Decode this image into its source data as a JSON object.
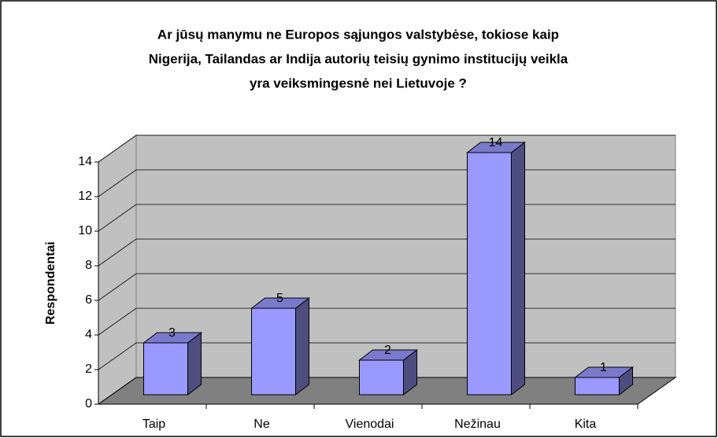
{
  "chart_data": {
    "type": "bar3d",
    "title": [
      "Ar jūsų manymu ne Europos sąjungos valstybėse, tokiose kaip",
      "Nigerija, Tailandas ar Indija autorių teisių gynimo institucijų veikla",
      "yra veiksmingesnė nei Lietuvoje ?"
    ],
    "y_label": "Respondentai",
    "categories": [
      "Taip",
      "Ne",
      "Vienodai",
      "Nežinau",
      "Kita"
    ],
    "values": [
      3,
      5,
      2,
      14,
      1
    ],
    "color": "#9999ff",
    "ylim": [
      0,
      14
    ],
    "yticks": [
      0,
      2,
      4,
      6,
      8,
      10,
      12,
      14
    ],
    "grid": true
  }
}
